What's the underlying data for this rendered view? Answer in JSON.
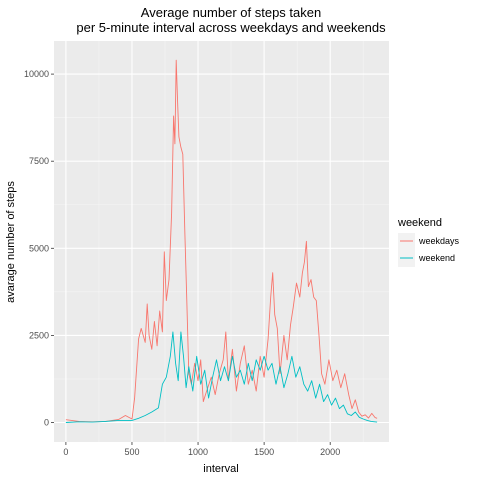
{
  "chart_data": {
    "type": "line",
    "title_lines": [
      "Average number of steps taken",
      "per 5-minute interval across weekdays and weekends"
    ],
    "xlabel": "interval",
    "ylabel": "avarage number of steps",
    "xlim": [
      -90,
      2445
    ],
    "ylim": [
      -560,
      10950
    ],
    "x_ticks": [
      0,
      500,
      1000,
      1500,
      2000
    ],
    "y_ticks": [
      0,
      2500,
      5000,
      7500,
      10000
    ],
    "x_tick_labels": [
      "0",
      "500",
      "1000",
      "1500",
      "2000"
    ],
    "y_tick_labels": [
      "0",
      "2500",
      "5000",
      "7500",
      "10000"
    ],
    "background": "#ebebeb",
    "grid": true,
    "legend": {
      "title": "weekend",
      "placement": "right"
    },
    "series": [
      {
        "name": "weekdays",
        "color": "#f8766d",
        "points": [
          [
            0,
            80
          ],
          [
            100,
            30
          ],
          [
            200,
            20
          ],
          [
            300,
            30
          ],
          [
            400,
            90
          ],
          [
            450,
            200
          ],
          [
            500,
            100
          ],
          [
            520,
            700
          ],
          [
            550,
            2400
          ],
          [
            570,
            2700
          ],
          [
            600,
            2300
          ],
          [
            615,
            3400
          ],
          [
            630,
            2500
          ],
          [
            650,
            2100
          ],
          [
            670,
            2900
          ],
          [
            690,
            2200
          ],
          [
            710,
            3200
          ],
          [
            730,
            2600
          ],
          [
            745,
            4900
          ],
          [
            760,
            3500
          ],
          [
            780,
            4100
          ],
          [
            800,
            6000
          ],
          [
            815,
            8800
          ],
          [
            825,
            8000
          ],
          [
            835,
            10400
          ],
          [
            845,
            9200
          ],
          [
            855,
            8200
          ],
          [
            870,
            7900
          ],
          [
            885,
            7700
          ],
          [
            900,
            5500
          ],
          [
            915,
            3500
          ],
          [
            930,
            1400
          ],
          [
            950,
            1100
          ],
          [
            975,
            1700
          ],
          [
            1000,
            1200
          ],
          [
            1020,
            1800
          ],
          [
            1040,
            600
          ],
          [
            1065,
            900
          ],
          [
            1100,
            1300
          ],
          [
            1130,
            800
          ],
          [
            1160,
            1400
          ],
          [
            1190,
            1800
          ],
          [
            1210,
            2600
          ],
          [
            1230,
            1200
          ],
          [
            1260,
            2100
          ],
          [
            1290,
            900
          ],
          [
            1320,
            1700
          ],
          [
            1350,
            2200
          ],
          [
            1380,
            1100
          ],
          [
            1410,
            1500
          ],
          [
            1440,
            900
          ],
          [
            1470,
            1900
          ],
          [
            1500,
            1300
          ],
          [
            1530,
            2400
          ],
          [
            1550,
            3600
          ],
          [
            1565,
            4300
          ],
          [
            1580,
            3100
          ],
          [
            1600,
            2700
          ],
          [
            1620,
            1400
          ],
          [
            1650,
            2500
          ],
          [
            1675,
            1800
          ],
          [
            1700,
            2800
          ],
          [
            1720,
            3300
          ],
          [
            1745,
            4000
          ],
          [
            1770,
            3600
          ],
          [
            1790,
            4300
          ],
          [
            1805,
            4600
          ],
          [
            1820,
            5200
          ],
          [
            1835,
            3900
          ],
          [
            1855,
            4100
          ],
          [
            1875,
            3600
          ],
          [
            1895,
            3500
          ],
          [
            1915,
            2500
          ],
          [
            1935,
            1400
          ],
          [
            1960,
            1100
          ],
          [
            1990,
            1800
          ],
          [
            2020,
            1200
          ],
          [
            2050,
            1500
          ],
          [
            2080,
            1000
          ],
          [
            2110,
            1400
          ],
          [
            2140,
            800
          ],
          [
            2165,
            400
          ],
          [
            2190,
            650
          ],
          [
            2215,
            300
          ],
          [
            2240,
            180
          ],
          [
            2265,
            220
          ],
          [
            2290,
            130
          ],
          [
            2315,
            260
          ],
          [
            2340,
            140
          ],
          [
            2355,
            120
          ]
        ]
      },
      {
        "name": "weekend",
        "color": "#00bfc4",
        "points": [
          [
            0,
            0
          ],
          [
            100,
            20
          ],
          [
            200,
            10
          ],
          [
            300,
            30
          ],
          [
            400,
            60
          ],
          [
            500,
            60
          ],
          [
            550,
            120
          ],
          [
            600,
            200
          ],
          [
            650,
            300
          ],
          [
            700,
            420
          ],
          [
            730,
            1100
          ],
          [
            760,
            1300
          ],
          [
            790,
            1900
          ],
          [
            810,
            2600
          ],
          [
            830,
            1700
          ],
          [
            850,
            1200
          ],
          [
            870,
            2600
          ],
          [
            890,
            1900
          ],
          [
            910,
            1000
          ],
          [
            930,
            1600
          ],
          [
            960,
            900
          ],
          [
            990,
            1900
          ],
          [
            1020,
            1100
          ],
          [
            1050,
            1500
          ],
          [
            1080,
            700
          ],
          [
            1110,
            1300
          ],
          [
            1140,
            1800
          ],
          [
            1170,
            1200
          ],
          [
            1200,
            1600
          ],
          [
            1230,
            1200
          ],
          [
            1260,
            1900
          ],
          [
            1290,
            1300
          ],
          [
            1320,
            1500
          ],
          [
            1350,
            1100
          ],
          [
            1380,
            1700
          ],
          [
            1410,
            1200
          ],
          [
            1440,
            1800
          ],
          [
            1470,
            1500
          ],
          [
            1500,
            1900
          ],
          [
            1530,
            1500
          ],
          [
            1560,
            1700
          ],
          [
            1590,
            1100
          ],
          [
            1620,
            1600
          ],
          [
            1650,
            1000
          ],
          [
            1680,
            1400
          ],
          [
            1710,
            1900
          ],
          [
            1740,
            1300
          ],
          [
            1770,
            1600
          ],
          [
            1800,
            1100
          ],
          [
            1830,
            900
          ],
          [
            1860,
            1200
          ],
          [
            1890,
            700
          ],
          [
            1920,
            1100
          ],
          [
            1950,
            600
          ],
          [
            1980,
            800
          ],
          [
            2010,
            500
          ],
          [
            2040,
            700
          ],
          [
            2070,
            400
          ],
          [
            2100,
            500
          ],
          [
            2130,
            250
          ],
          [
            2160,
            200
          ],
          [
            2190,
            300
          ],
          [
            2220,
            150
          ],
          [
            2250,
            100
          ],
          [
            2280,
            60
          ],
          [
            2310,
            30
          ],
          [
            2335,
            20
          ],
          [
            2355,
            10
          ]
        ]
      }
    ]
  }
}
